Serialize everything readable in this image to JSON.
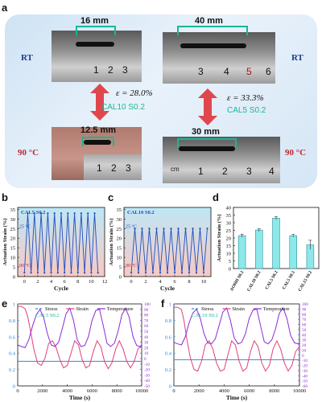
{
  "panel_labels": {
    "a": "a",
    "b": "b",
    "c": "c",
    "d": "d",
    "e": "e",
    "f": "f"
  },
  "panel_a": {
    "left": {
      "len_rt": "16 mm",
      "len_hot": "12.5 mm",
      "strain": "ε = 28.0%",
      "material": "CAL10 S0.2",
      "ruler_top": [
        "1",
        "2",
        "3"
      ],
      "ruler_bottom": [
        "1",
        "2",
        "3"
      ]
    },
    "right": {
      "len_rt": "40 mm",
      "len_hot": "30 mm",
      "strain": "ε = 33.3%",
      "material": "CAL5 S0.2",
      "ruler_top": [
        "3",
        "4",
        "5",
        "6"
      ],
      "ruler_bottom": [
        "1",
        "2",
        "3",
        "4"
      ],
      "ruler_bottom_unit": "cm"
    },
    "rt_label": "RT",
    "hot_label": "90 °C",
    "colors": {
      "accent": "#17b897",
      "rt": "#1f3d8a",
      "hot": "#c0282d",
      "arrow": "#e0474c"
    }
  },
  "chart_data": [
    {
      "panel": "b",
      "type": "line",
      "legend": "CAL5 S0.2",
      "temp_hi": "25 °C",
      "temp_lo": "90 °C",
      "xlabel": "Cycle",
      "ylabel": "Actuation Strain (%)",
      "xlim": [
        -1,
        12
      ],
      "ylim": [
        0,
        36
      ],
      "xticks": [
        0,
        2,
        4,
        6,
        8,
        10,
        12
      ],
      "yticks": [
        0,
        5,
        10,
        15,
        20,
        25,
        30,
        35
      ],
      "x": [
        0,
        0.5,
        1,
        1.5,
        2,
        2.5,
        3,
        3.5,
        4,
        4.5,
        5,
        5.5,
        6,
        6.5,
        7,
        7.5,
        8,
        8.5,
        9,
        9.5,
        10,
        10.5,
        11
      ],
      "y": [
        2,
        33,
        2,
        33,
        2,
        33,
        2,
        33,
        2,
        33,
        2,
        33,
        2,
        33,
        2,
        33,
        2,
        33,
        2,
        33,
        2,
        33,
        2
      ],
      "color": "#1f4fbf"
    },
    {
      "panel": "c",
      "type": "line",
      "legend": "CAL10 S0.2",
      "temp_hi": "25 °C",
      "temp_lo": "90 °C",
      "xlabel": "Cycle",
      "ylabel": "Actuation Strain (%)",
      "xlim": [
        -1,
        11
      ],
      "ylim": [
        0,
        36
      ],
      "xticks": [
        0,
        2,
        4,
        6,
        8,
        10
      ],
      "yticks": [
        0,
        5,
        10,
        15,
        20,
        25,
        30,
        35
      ],
      "x": [
        0,
        0.5,
        1,
        1.5,
        2,
        2.5,
        3,
        3.5,
        4,
        4.5,
        5,
        5.5,
        6,
        6.5,
        7,
        7.5,
        8,
        8.5,
        9,
        9.5,
        10,
        10.5
      ],
      "y": [
        2,
        25,
        2,
        25,
        2,
        25,
        2,
        25,
        2,
        25,
        2,
        25,
        2,
        25,
        2,
        25,
        2,
        25,
        2,
        25,
        2,
        25
      ],
      "color": "#1f4fbf"
    },
    {
      "panel": "d",
      "type": "bar",
      "ylabel": "Actuation Strain (%)",
      "categories": [
        "AOHH S0.2",
        "CAL10 S0.2",
        "CAL5 S0.2",
        "CAL5 S0.1",
        "CAL15 S0.2"
      ],
      "values": [
        21.5,
        25.2,
        33.0,
        21.5,
        15.5
      ],
      "errors": [
        1.0,
        1.0,
        1.0,
        0.8,
        3.0
      ],
      "ylim": [
        0,
        40
      ],
      "yticks": [
        0,
        5,
        10,
        15,
        20,
        25,
        30,
        35,
        40
      ],
      "color": "#8de8ea",
      "edge": "#2c8f98"
    },
    {
      "panel": "e",
      "type": "line",
      "legend_inset": "CAL5 S0.2",
      "xlabel": "Time (s)",
      "xlim": [
        0,
        10000
      ],
      "xticks": [
        0,
        2000,
        4000,
        6000,
        8000,
        10000
      ],
      "ylim_left": [
        0,
        1.0
      ],
      "yticks_left": [
        0.0,
        0.2,
        0.4,
        0.6,
        0.8,
        1.0
      ],
      "ylim_right": [
        -50,
        100
      ],
      "yticks_right": [
        -50,
        -40,
        -30,
        -20,
        -10,
        0,
        10,
        20,
        30,
        40,
        50,
        60,
        70,
        80,
        90,
        100
      ],
      "series": [
        {
          "name": "Stress",
          "color": "#2b8ad8",
          "x": [
            0,
            10000
          ],
          "y": [
            0.3,
            0.3
          ]
        },
        {
          "name": "Strain",
          "color": "#e0407a",
          "x": [
            0,
            300,
            600,
            800,
            1000,
            1300,
            1600,
            1900,
            2200,
            2500,
            2800,
            3100,
            3400,
            3700,
            4000,
            4300,
            4600,
            4900,
            5200,
            5500,
            5800,
            6100,
            6400,
            6700,
            7000,
            7300,
            7600,
            7900,
            8200,
            8500,
            8800,
            9100,
            9400,
            9700,
            10000
          ],
          "y": [
            0.97,
            0.97,
            0.94,
            0.85,
            0.7,
            0.45,
            0.28,
            0.25,
            0.34,
            0.52,
            0.55,
            0.47,
            0.32,
            0.22,
            0.25,
            0.4,
            0.55,
            0.5,
            0.32,
            0.22,
            0.25,
            0.42,
            0.55,
            0.48,
            0.3,
            0.21,
            0.28,
            0.45,
            0.55,
            0.45,
            0.3,
            0.22,
            0.3,
            0.45,
            0.5
          ]
        },
        {
          "name": "Temperature",
          "color": "#8a2bd8",
          "x": [
            0,
            300,
            600,
            900,
            1200,
            1500,
            1800,
            2100,
            2400,
            2700,
            3000,
            3300,
            3600,
            3900,
            4200,
            4500,
            4800,
            5100,
            5400,
            5700,
            6000,
            6300,
            6600,
            6900,
            7200,
            7500,
            7800,
            8100,
            8400,
            8700,
            9000,
            9300,
            9600,
            9900,
            10000
          ],
          "y": [
            25,
            22,
            20,
            35,
            60,
            80,
            90,
            75,
            45,
            25,
            22,
            30,
            55,
            82,
            92,
            70,
            35,
            22,
            24,
            40,
            70,
            88,
            90,
            60,
            28,
            22,
            28,
            50,
            80,
            92,
            75,
            40,
            24,
            22,
            25
          ]
        }
      ]
    },
    {
      "panel": "f",
      "type": "line",
      "legend_inset": "CAL10 S0.2",
      "xlabel": "Time (s)",
      "xlim": [
        0,
        10000
      ],
      "xticks": [
        0,
        2000,
        4000,
        6000,
        8000,
        10000
      ],
      "ylim_left": [
        0,
        1.0
      ],
      "yticks_left": [
        0.0,
        0.2,
        0.4,
        0.6,
        0.8,
        1.0
      ],
      "ylim_right": [
        -60,
        100
      ],
      "yticks_right": [
        -60,
        -50,
        -40,
        -30,
        -20,
        -10,
        0,
        10,
        20,
        30,
        40,
        50,
        60,
        70,
        80,
        90,
        100
      ],
      "series": [
        {
          "name": "Stress",
          "color": "#2b8ad8",
          "x": [
            0,
            10000
          ],
          "y": [
            0.32,
            0.32
          ]
        },
        {
          "name": "Strain",
          "color": "#e0407a",
          "x": [
            0,
            300,
            600,
            800,
            1000,
            1300,
            1600,
            1900,
            2200,
            2500,
            2800,
            3100,
            3400,
            3700,
            4000,
            4300,
            4600,
            4900,
            5200,
            5500,
            5800,
            6100,
            6400,
            6700,
            7000,
            7300,
            7600,
            7900,
            8200,
            8500,
            8800,
            9100,
            9400,
            9700,
            10000
          ],
          "y": [
            0.96,
            0.96,
            0.93,
            0.8,
            0.6,
            0.35,
            0.2,
            0.18,
            0.3,
            0.5,
            0.55,
            0.45,
            0.28,
            0.18,
            0.2,
            0.38,
            0.55,
            0.5,
            0.3,
            0.18,
            0.22,
            0.42,
            0.55,
            0.48,
            0.28,
            0.18,
            0.25,
            0.45,
            0.55,
            0.45,
            0.28,
            0.18,
            0.25,
            0.42,
            0.48
          ]
        },
        {
          "name": "Temperature",
          "color": "#8a2bd8",
          "x": [
            0,
            300,
            600,
            900,
            1200,
            1500,
            1800,
            2100,
            2400,
            2700,
            3000,
            3300,
            3600,
            3900,
            4200,
            4500,
            4800,
            5100,
            5400,
            5700,
            6000,
            6300,
            6600,
            6900,
            7200,
            7500,
            7800,
            8100,
            8400,
            8700,
            9000,
            9300,
            9600,
            9900,
            10000
          ],
          "y": [
            25,
            22,
            20,
            35,
            62,
            82,
            90,
            72,
            42,
            24,
            22,
            32,
            58,
            84,
            92,
            68,
            34,
            22,
            25,
            42,
            72,
            88,
            90,
            58,
            26,
            22,
            30,
            52,
            82,
            92,
            72,
            38,
            24,
            22,
            25
          ]
        }
      ]
    }
  ]
}
